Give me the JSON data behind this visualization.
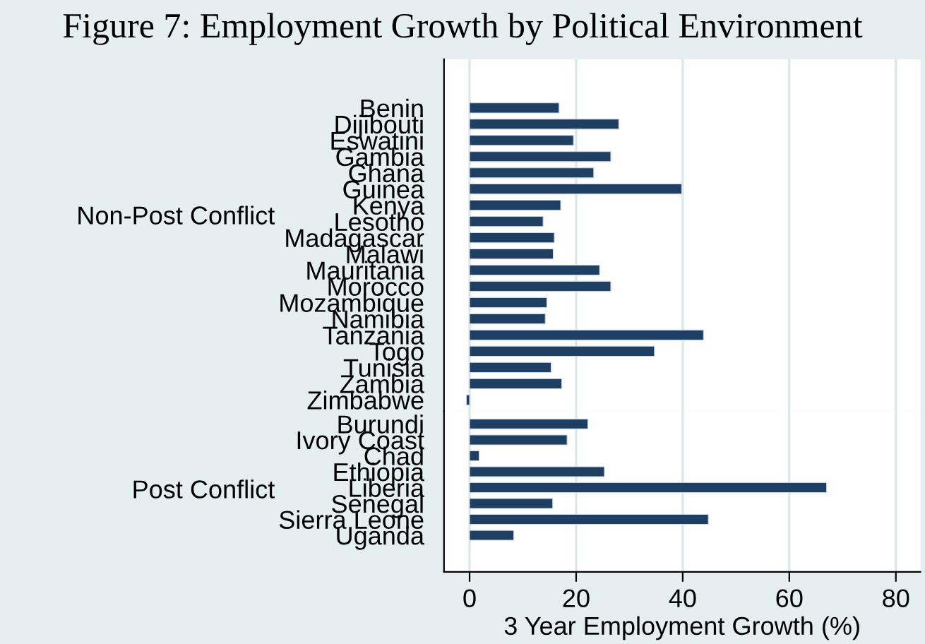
{
  "chart_data": [
    {
      "type": "bar",
      "orientation": "horizontal",
      "title": "Figure 7: Employment Growth by Political Environment",
      "ylabel": "Non-Post Conflict",
      "categories": [
        "Benin",
        "Dijibouti",
        "Eswatini",
        "Gambia",
        "Ghana",
        "Guinea",
        "Kenya",
        "Lesotho",
        "Madagascar",
        "Malawi",
        "Mauritania",
        "Morocco",
        "Mozambique",
        "Namibia",
        "Tanzania",
        "Togo",
        "Tunisia",
        "Zambia",
        "Zimbabwe"
      ],
      "values": [
        16.8,
        28.0,
        19.5,
        26.5,
        23.3,
        39.8,
        17.1,
        13.8,
        15.9,
        15.7,
        24.4,
        26.5,
        14.5,
        14.2,
        43.9,
        34.7,
        15.3,
        17.3,
        -0.6
      ],
      "color": "#1e3e62",
      "xlim": [
        -4.8,
        84.6
      ],
      "xticks": [
        0,
        20,
        40,
        60,
        80
      ],
      "grid": "x",
      "tick_labels": "y"
    },
    {
      "type": "bar",
      "orientation": "horizontal",
      "ylabel": "Post Conflict",
      "xlabel": "3 Year Employment Growth (%)",
      "categories": [
        "Burundi",
        "Ivory Coast",
        "Chad",
        "Ethiopia",
        "Liberia",
        "Senegal",
        "Sierra Leone",
        "Uganda"
      ],
      "values": [
        22.2,
        18.3,
        1.8,
        25.3,
        67.0,
        15.6,
        44.8,
        8.3
      ],
      "color": "#1e3e62",
      "xlim": [
        -4.8,
        84.6
      ],
      "xticks": [
        0,
        20,
        40,
        60,
        80
      ],
      "grid": "x"
    }
  ]
}
